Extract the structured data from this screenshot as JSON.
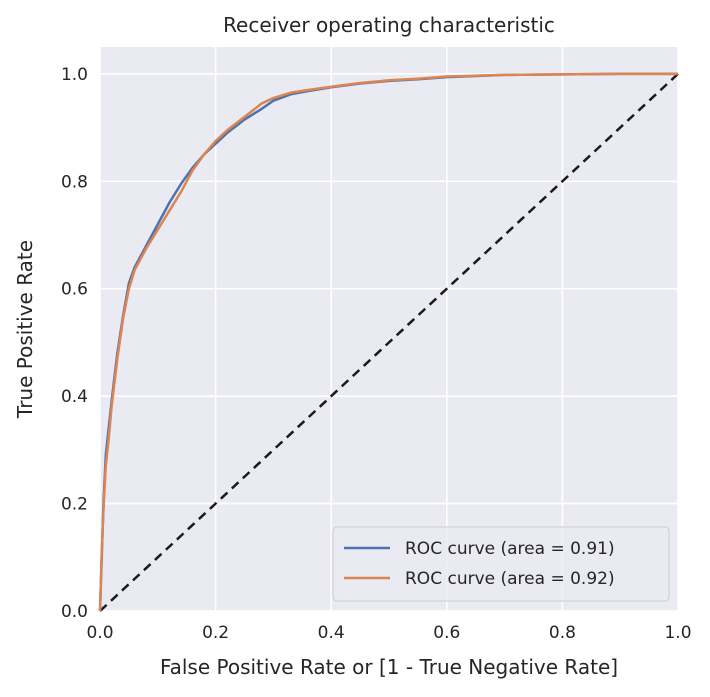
{
  "chart_data": {
    "type": "line",
    "title": "Receiver operating characteristic",
    "xlabel": "False Positive Rate or [1 - True Negative Rate]",
    "ylabel": "True Positive Rate",
    "xlim": [
      0.0,
      1.0
    ],
    "ylim": [
      0.0,
      1.05
    ],
    "xticks": [
      "0.0",
      "0.2",
      "0.4",
      "0.6",
      "0.8",
      "1.0"
    ],
    "yticks": [
      "0.0",
      "0.2",
      "0.4",
      "0.6",
      "0.8",
      "1.0"
    ],
    "grid": true,
    "legend_position": "lower-right",
    "background_color": "#eaeaf2",
    "series": [
      {
        "name": "ROC curve (area = 0.91)",
        "color": "#4c72b0",
        "x": [
          0.0,
          0.003,
          0.006,
          0.01,
          0.015,
          0.02,
          0.03,
          0.04,
          0.05,
          0.06,
          0.08,
          0.1,
          0.12,
          0.14,
          0.16,
          0.18,
          0.2,
          0.22,
          0.25,
          0.28,
          0.3,
          0.33,
          0.36,
          0.4,
          0.45,
          0.5,
          0.55,
          0.6,
          0.7,
          0.8,
          0.9,
          1.0
        ],
        "y": [
          0.0,
          0.1,
          0.2,
          0.29,
          0.34,
          0.39,
          0.48,
          0.55,
          0.61,
          0.64,
          0.68,
          0.72,
          0.76,
          0.795,
          0.825,
          0.85,
          0.87,
          0.89,
          0.915,
          0.935,
          0.95,
          0.962,
          0.968,
          0.975,
          0.982,
          0.987,
          0.99,
          0.994,
          0.998,
          0.999,
          1.0,
          1.0
        ]
      },
      {
        "name": "ROC curve (area = 0.92)",
        "color": "#dd8452",
        "x": [
          0.0,
          0.003,
          0.006,
          0.01,
          0.015,
          0.02,
          0.03,
          0.04,
          0.05,
          0.06,
          0.08,
          0.1,
          0.12,
          0.14,
          0.16,
          0.18,
          0.2,
          0.22,
          0.25,
          0.28,
          0.3,
          0.33,
          0.36,
          0.4,
          0.45,
          0.5,
          0.55,
          0.6,
          0.7,
          0.8,
          0.9,
          1.0
        ],
        "y": [
          0.0,
          0.11,
          0.19,
          0.27,
          0.32,
          0.38,
          0.47,
          0.545,
          0.6,
          0.635,
          0.675,
          0.71,
          0.745,
          0.78,
          0.82,
          0.85,
          0.875,
          0.895,
          0.92,
          0.945,
          0.955,
          0.965,
          0.97,
          0.976,
          0.983,
          0.988,
          0.991,
          0.995,
          0.998,
          0.999,
          1.0,
          1.0
        ]
      },
      {
        "color": "#1a1a1a",
        "style": "dashed",
        "x": [
          0.0,
          1.0
        ],
        "y": [
          0.0,
          1.0
        ]
      }
    ]
  }
}
